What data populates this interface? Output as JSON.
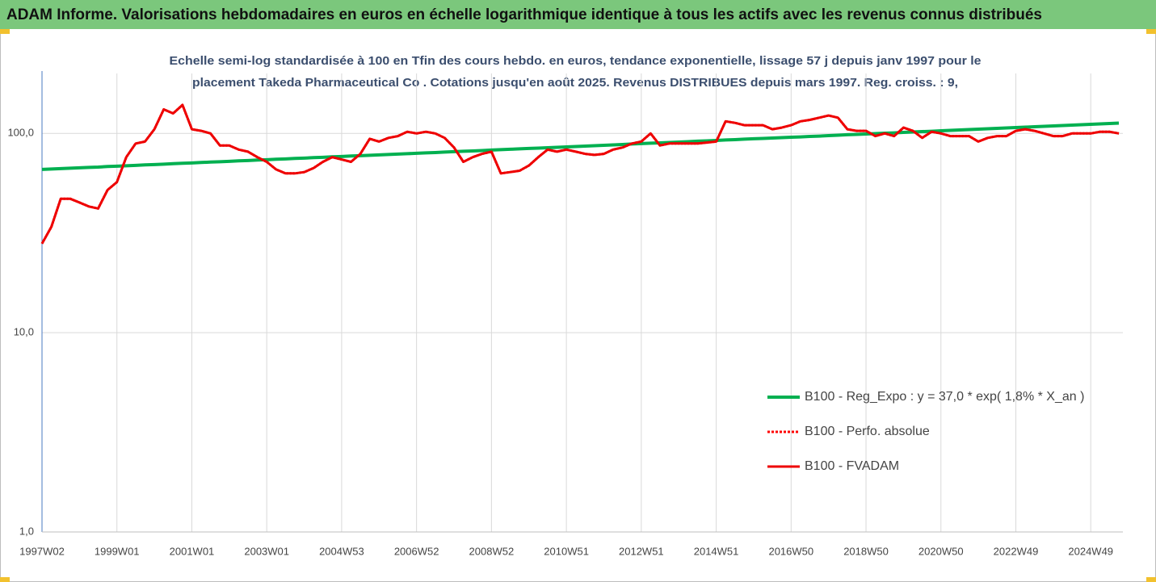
{
  "chart_data": {
    "type": "line",
    "title": "ADAM Informe. Valorisations hebdomadaires en euros en échelle logarithmique identique à tous les actifs avec les revenus connus distribués",
    "subtitle": [
      "Echelle semi-log standardisée à 100 en Tfin des cours hebdo. en euros, tendance exponentielle, lissage 57 j depuis janv 1997 pour le",
      "placement Takeda Pharmaceutical Co . Cotations jusqu'en août 2025.  Revenus DISTRIBUES depuis mars 1997. Reg. croiss. : 9,"
    ],
    "categories": [
      "1997W02",
      null,
      null,
      null,
      null,
      null,
      null,
      null,
      "1999W01",
      null,
      null,
      null,
      null,
      null,
      null,
      null,
      "2001W01",
      null,
      null,
      null,
      null,
      null,
      null,
      null,
      "2003W01",
      null,
      null,
      null,
      null,
      null,
      null,
      null,
      "2004W53",
      null,
      null,
      null,
      null,
      null,
      null,
      null,
      "2006W52",
      null,
      null,
      null,
      null,
      null,
      null,
      null,
      "2008W52",
      null,
      null,
      null,
      null,
      null,
      null,
      null,
      "2010W51",
      null,
      null,
      null,
      null,
      null,
      null,
      null,
      "2012W51",
      null,
      null,
      null,
      null,
      null,
      null,
      null,
      "2014W51",
      null,
      null,
      null,
      null,
      null,
      null,
      null,
      "2016W50",
      null,
      null,
      null,
      null,
      null,
      null,
      null,
      "2018W50",
      null,
      null,
      null,
      null,
      null,
      null,
      null,
      "2020W50",
      null,
      null,
      null,
      null,
      null,
      null,
      null,
      "2022W49",
      null,
      null,
      null,
      null,
      null,
      null,
      null,
      "2024W49",
      null,
      null,
      null
    ],
    "series": [
      {
        "name": "B100 - Reg_Expo : y = 37,0 * exp( 1,8% *  X_an )",
        "color": "#00b050",
        "style": "solid",
        "width": 4,
        "values": [
          66.0,
          66.3,
          66.6,
          66.9,
          67.2,
          67.5,
          67.8,
          68.2,
          68.5,
          68.8,
          69.1,
          69.5,
          69.8,
          70.1,
          70.5,
          70.8,
          71.1,
          71.5,
          71.8,
          72.1,
          72.4,
          72.8,
          73.1,
          73.5,
          73.8,
          74.2,
          74.5,
          74.9,
          75.2,
          75.6,
          75.9,
          76.3,
          76.6,
          77.0,
          77.3,
          77.7,
          78.0,
          78.4,
          78.8,
          79.1,
          79.5,
          79.9,
          80.2,
          80.6,
          81.0,
          81.4,
          81.7,
          82.1,
          82.5,
          82.9,
          83.3,
          83.7,
          84.1,
          84.4,
          84.8,
          85.2,
          85.6,
          86.0,
          86.4,
          86.8,
          87.2,
          87.6,
          88.0,
          88.5,
          88.9,
          89.3,
          89.7,
          90.1,
          90.5,
          90.9,
          91.4,
          91.8,
          92.2,
          92.7,
          93.1,
          93.6,
          94.0,
          94.4,
          94.8,
          95.3,
          95.7,
          96.1,
          96.6,
          97.0,
          97.5,
          98.0,
          98.5,
          98.9,
          99.4,
          99.8,
          100.3,
          100.7,
          101.2,
          101.7,
          102.2,
          102.6,
          103.1,
          103.6,
          104.1,
          104.6,
          105.1,
          105.6,
          106.1,
          106.6,
          107.1,
          107.6,
          108.1,
          108.6,
          109.1,
          109.6,
          110.1,
          110.6,
          111.1,
          111.6,
          112.2,
          112.7
        ]
      },
      {
        "name": "B100 - Perfo. absolue",
        "color": "#ff0000",
        "style": "dotted",
        "width": 3,
        "values": [
          28,
          34,
          47,
          47,
          45,
          43,
          42,
          52,
          57,
          76,
          89,
          91,
          105,
          132,
          126,
          139,
          105,
          103,
          100,
          87,
          87,
          83,
          81,
          76,
          72,
          66,
          63,
          63,
          64,
          67,
          72,
          76,
          74,
          72,
          79,
          94,
          91,
          95,
          97,
          102,
          100,
          102,
          100,
          95,
          85,
          72,
          76,
          79,
          81,
          63,
          64,
          65,
          69,
          76,
          83,
          81,
          83,
          81,
          79,
          78,
          79,
          83,
          85,
          89,
          91,
          100,
          87,
          89,
          89,
          89,
          89,
          90,
          91,
          115,
          113,
          110,
          110,
          110,
          105,
          107,
          110,
          115,
          117,
          120,
          123,
          120,
          105,
          103,
          103,
          97,
          100,
          97,
          107,
          103,
          95,
          102,
          100,
          97,
          97,
          97,
          91,
          95,
          97,
          97,
          103,
          105,
          103,
          100,
          97,
          97,
          100,
          100,
          100,
          102,
          102,
          100
        ]
      },
      {
        "name": "B100 - FVADAM",
        "color": "#ee0000",
        "style": "solid",
        "width": 3,
        "values": [
          28,
          34,
          47,
          47,
          45,
          43,
          42,
          52,
          57,
          76,
          89,
          91,
          105,
          132,
          126,
          139,
          105,
          103,
          100,
          87,
          87,
          83,
          81,
          76,
          72,
          66,
          63,
          63,
          64,
          67,
          72,
          76,
          74,
          72,
          79,
          94,
          91,
          95,
          97,
          102,
          100,
          102,
          100,
          95,
          85,
          72,
          76,
          79,
          81,
          63,
          64,
          65,
          69,
          76,
          83,
          81,
          83,
          81,
          79,
          78,
          79,
          83,
          85,
          89,
          91,
          100,
          87,
          89,
          89,
          89,
          89,
          90,
          91,
          115,
          113,
          110,
          110,
          110,
          105,
          107,
          110,
          115,
          117,
          120,
          123,
          120,
          105,
          103,
          103,
          97,
          100,
          97,
          107,
          103,
          95,
          102,
          100,
          97,
          97,
          97,
          91,
          95,
          97,
          97,
          103,
          105,
          103,
          100,
          97,
          97,
          100,
          100,
          100,
          102,
          102,
          100
        ]
      }
    ],
    "log_scale": true,
    "ylim": [
      1,
      200
    ],
    "yticks": [
      {
        "value": 1,
        "label": "1,0"
      },
      {
        "value": 10,
        "label": "10,0"
      },
      {
        "value": 100,
        "label": "100,0"
      }
    ],
    "grid": true,
    "legend": "right"
  }
}
